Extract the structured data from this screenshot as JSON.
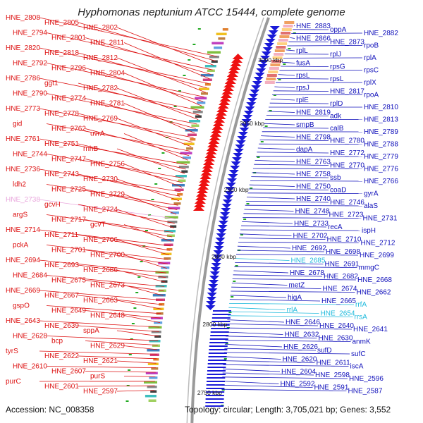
{
  "title": "Hyphomonas neptunium ATCC 15444, complete genome",
  "footer": {
    "accession": "Accession: NC_008358",
    "topology": "Topology: circular; Length: 3,705,021 bp; Genes: 3,552"
  },
  "colors": {
    "left_label": "#dd1111",
    "right_label": "#1111bb",
    "rna_label": "#22bbdd",
    "pseudo_label": "#e9a6dc",
    "backbone": "#9a9a9a",
    "reverse_arrow": "#ee1111",
    "forward_arrow": "#1a1ad8",
    "tick": "#22aa22"
  },
  "kbp_marks": [
    "3000 kbp",
    "2950 kbp",
    "2900 kbp",
    "2850 kbp",
    "2800 kbp",
    "2750 kbp"
  ],
  "left_labels": [
    "HNE_2808",
    "HNE_2805",
    "HNE_2802",
    "HNE_2794",
    "HNE_2801",
    "HNE_2811",
    "HNE_2820",
    "HNE_2818",
    "HNE_2812",
    "HNE_2792",
    "HNE_2796",
    "HNE_2804",
    "HNE_2786",
    "ggt1",
    "HNE_2782",
    "HNE_2790",
    "HNE_2774",
    "HNE_2781",
    "HNE_2773",
    "HNE_2778",
    "HNE_2769",
    "gid",
    "HNE_2762",
    "uvrA",
    "HNE_2761",
    "HNE_2751",
    "rnhB",
    "HNE_2744",
    "HNE_2747",
    "HNE_2756",
    "HNE_2736",
    "HNE_2743",
    "HNE_2730",
    "ldh2",
    "HNE_2725",
    "HNE_2729",
    "HNE_2738",
    "gcvH",
    "HNE_2724",
    "argS",
    "HNE_2717",
    "gcvT",
    "HNE_2714",
    "HNE_2711",
    "HNE_2706",
    "pckA",
    "HNE_2701",
    "HNE_2700",
    "HNE_2694",
    "HNE_2693",
    "HNE_2686",
    "HNE_2684",
    "HNE_2675",
    "HNE_2673",
    "HNE_2669",
    "HNE_2667",
    "HNE_2663",
    "gspO",
    "HNE_2649",
    "HNE_2648",
    "HNE_2643",
    "HNE_2639",
    "sppA",
    "HNE_2628",
    "bcp",
    "HNE_2629",
    "tyrS",
    "HNE_2622",
    "HNE_2621",
    "HNE_2610",
    "HNE_2607",
    "purS",
    "purC",
    "HNE_2601",
    "HNE_2597"
  ],
  "right_labels": [
    "HNE_2883",
    "oppA",
    "HNE_2882",
    "HNE_2866",
    "HNE_2873",
    "rpoB",
    "rplL",
    "rplJ",
    "rplA",
    "fusA",
    "rpsG",
    "rpsC",
    "rpsL",
    "rpsL",
    "rplX",
    "rpsJ",
    "HNE_2817",
    "rpoA",
    "rplE",
    "rplD",
    "HNE_2810",
    "HNE_2819",
    "adk",
    "HNE_2813",
    "smpB",
    "calB",
    "HNE_2789",
    "HNE_2798",
    "HNE_2780",
    "HNE_2788",
    "dapA",
    "HNE_2772",
    "HNE_2779",
    "HNE_2763",
    "HNE_2770",
    "HNE_2776",
    "HNE_2758",
    "ssb",
    "HNE_2766",
    "HNE_2750",
    "coaD",
    "gyrA",
    "HNE_2740",
    "HNE_2746",
    "alaS",
    "HNE_2748",
    "HNE_2723",
    "HNE_2731",
    "HNE_2733",
    "recA",
    "ispH",
    "HNE_2702",
    "HNE_2710",
    "HNE_2712",
    "HNE_2692",
    "HNE_2698",
    "HNE_2699",
    "HNE_2685",
    "HNE_2691",
    "mmgC",
    "HNE_2678",
    "HNE_2682",
    "HNE_2668",
    "metZ",
    "HNE_2674",
    "HNE_2662",
    "higA",
    "HNE_2665",
    "rrfA",
    "rrlA",
    "HNE_2654",
    "rrsA",
    "HNE_2646",
    "HNE_2640",
    "HNE_2641",
    "HNE_2632",
    "HNE_2630",
    "anmK",
    "HNE_2626",
    "sufD",
    "sufC",
    "HNE_2620",
    "HNE_2611",
    "iscA",
    "HNE_2604",
    "HNE_2598",
    "HNE_2596",
    "HNE_2592",
    "HNE_2591",
    "HNE_2587"
  ]
}
